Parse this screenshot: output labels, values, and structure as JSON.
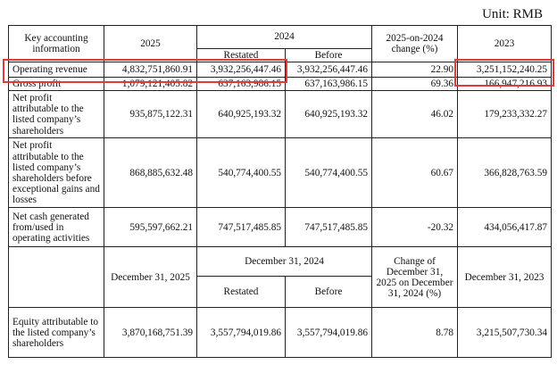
{
  "unit_label": "Unit: RMB",
  "headers": {
    "key_info": "Key accounting information",
    "y2025": "2025",
    "y2024": "2024",
    "restated": "Restated",
    "before": "Before",
    "change": "2025-on-2024 change (%)",
    "y2023": "2023"
  },
  "rows": [
    {
      "label": "Operating revenue",
      "v2025": "4,832,751,860.91",
      "restated": "3,932,256,447.46",
      "before": "3,932,256,447.46",
      "change": "22.90",
      "v2023": "3,251,152,240.25"
    },
    {
      "label": "Gross profit",
      "v2025": "1,079,121,405.82",
      "restated": "637,163,986.15",
      "before": "637,163,986.15",
      "change": "69.36",
      "v2023": "166,947,216.93"
    },
    {
      "label": "Net profit attributable to the listed company’s shareholders",
      "v2025": "935,875,122.31",
      "restated": "640,925,193.32",
      "before": "640,925,193.32",
      "change": "46.02",
      "v2023": "179,233,332.27"
    },
    {
      "label": "Net profit attributable to the listed company’s shareholders before exceptional gains and losses",
      "v2025": "868,885,632.48",
      "restated": "540,774,400.55",
      "before": "540,774,400.55",
      "change": "60.67",
      "v2023": "366,828,763.59"
    },
    {
      "label": "Net cash generated from/used in operating activities",
      "v2025": "595,597,662.21",
      "restated": "747,517,485.85",
      "before": "747,517,485.85",
      "change": "-20.32",
      "v2023": "434,056,417.87"
    }
  ],
  "headers2": {
    "d2025": "December 31, 2025",
    "d2024": "December 31, 2024",
    "restated": "Restated",
    "before": "Before",
    "change": "Change of December 31, 2025 on December 31, 2024 (%)",
    "d2023": "December 31, 2023"
  },
  "equity_row": {
    "label": "Equity attributable to the listed company’s shareholders",
    "v2025": "3,870,168,751.39",
    "restated": "3,557,794,019.86",
    "before": "3,557,794,019.86",
    "change": "8.78",
    "v2023": "3,215,507,730.34"
  },
  "highlight_color": "#e23a3a"
}
